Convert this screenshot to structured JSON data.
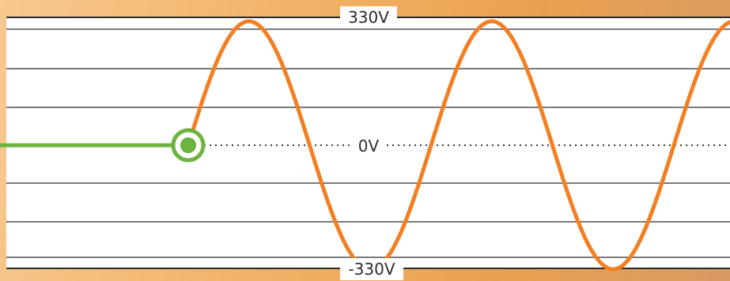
{
  "chart_data": {
    "type": "line",
    "title": "",
    "xlabel": "",
    "ylabel": "",
    "labels": {
      "top": "330V",
      "zero": "0V",
      "bottom": "-330V"
    },
    "ylim": [
      -330,
      330
    ],
    "grid": true,
    "series": [
      {
        "values_desc": "",
        "kind": "sine",
        "amplitude": 330,
        "periods_visible": 2.45,
        "start_phase": "zero-crossing-rising"
      }
    ],
    "colors": {
      "sine": "#f37f23",
      "start_line": "#6cb33f",
      "grid": "#2a2a2a",
      "plot_bg": "#ffffff",
      "zero_dots": "#3a3a3a"
    }
  }
}
